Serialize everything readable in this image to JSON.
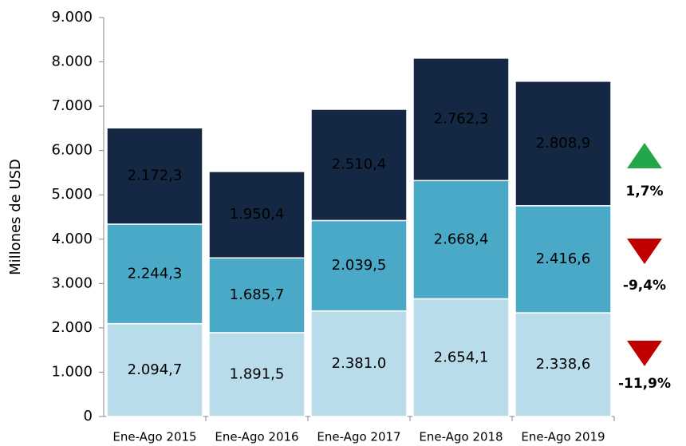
{
  "chart_data": {
    "type": "stacked_bar",
    "y_label": "Millones de  USD",
    "categories": [
      "Ene-Ago 2015",
      "Ene-Ago 2016",
      "Ene-Ago 2017",
      "Ene-Ago 2018",
      "Ene-Ago 2019"
    ],
    "series": [
      {
        "color": "#b8dce9",
        "label_color": "#000000",
        "values": [
          2094.7,
          1891.5,
          2381.0,
          2654.1,
          2338.6
        ],
        "value_labels": [
          "2.094,7",
          "1.891,5",
          "2.381.0",
          "2.654,1",
          "2.338,6"
        ]
      },
      {
        "color": "#4aa9c6",
        "label_color": "#000000",
        "values": [
          2244.3,
          1685.7,
          2039.5,
          2668.4,
          2416.6
        ],
        "value_labels": [
          "2.244,3",
          "1.685,7",
          "2.039,5",
          "2.668,4",
          "2.416,6"
        ]
      },
      {
        "color": "#142743",
        "label_color": "#ffffff",
        "values": [
          2172.3,
          1950.4,
          2510.4,
          2762.3,
          2808.9
        ],
        "value_labels": [
          "2.172,3",
          "1.950,4",
          "2.510,4",
          "2.762,3",
          "2.808,9"
        ]
      }
    ],
    "ylim": [
      0,
      9000
    ],
    "yticks": [
      0,
      {
        "value": 1000,
        "label": "1.000"
      },
      {
        "value": 2000,
        "label": "2.000"
      },
      {
        "value": 3000,
        "label": "3.000"
      },
      {
        "value": 4000,
        "label": "4.000"
      },
      {
        "value": 5000,
        "label": "5.000"
      },
      {
        "value": 6000,
        "label": "6.000"
      },
      {
        "value": 7000,
        "label": "7.000"
      },
      {
        "value": 8000,
        "label": "8.000"
      },
      {
        "value": 9000,
        "label": "9.000"
      }
    ],
    "annotations": [
      {
        "label": "1,7%",
        "marker": "up",
        "color": "#22a84a"
      },
      {
        "label": "-9,4%",
        "marker": "down",
        "color": "#c00000"
      },
      {
        "label": "-11,9%",
        "marker": "down",
        "color": "#c00000"
      }
    ]
  }
}
